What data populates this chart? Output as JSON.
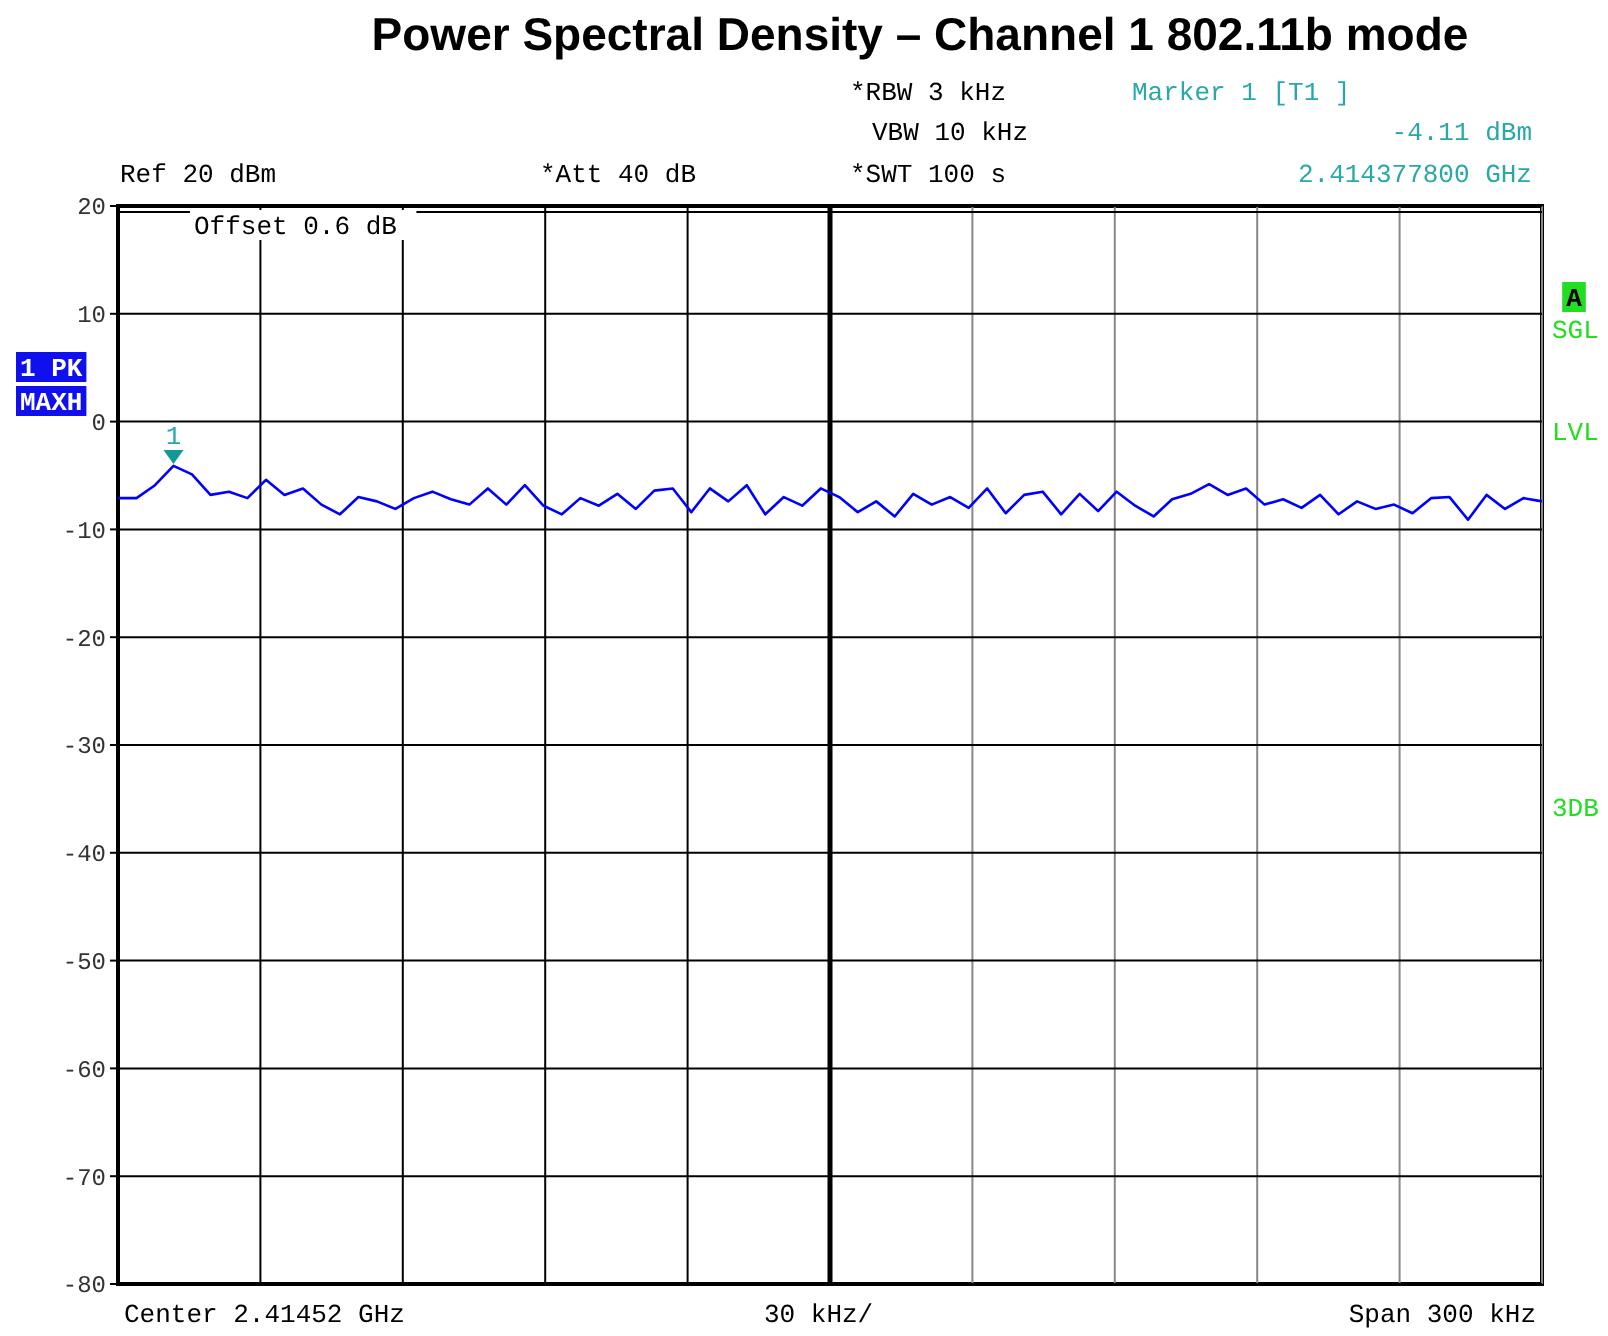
{
  "chart_data": {
    "type": "line",
    "title": "Power Spectral Density – Channel 1 802.11b mode",
    "categories": [
      null,
      null,
      null,
      null,
      null,
      null,
      null,
      null,
      null,
      null,
      null,
      null,
      null,
      null,
      null,
      null,
      null,
      null,
      null,
      null,
      null,
      null,
      null,
      null,
      null,
      null,
      null,
      null,
      null,
      null,
      null,
      null,
      null,
      null,
      null,
      null,
      null,
      null,
      null,
      null,
      null,
      null,
      null,
      null,
      null,
      null,
      null,
      null,
      null,
      null,
      null,
      null,
      null,
      null,
      null,
      null,
      null,
      null,
      null,
      null,
      null,
      null,
      null,
      null,
      null,
      null,
      null,
      null,
      null,
      null,
      null,
      null,
      null,
      null,
      null,
      null,
      null,
      null
    ],
    "series": [
      {
        "color": "#0000ff",
        "values": [
          -7.1,
          -7.1,
          -5.9,
          -4.11,
          -4.9,
          -6.8,
          -6.5,
          -7.1,
          -5.4,
          -6.8,
          -6.2,
          -7.7,
          -8.6,
          -7.0,
          -7.4,
          -8.1,
          -7.1,
          -6.5,
          -7.2,
          -7.7,
          -6.2,
          -7.7,
          -5.9,
          -7.8,
          -8.6,
          -7.1,
          -7.8,
          -6.7,
          -8.1,
          -6.4,
          -6.2,
          -8.4,
          -6.2,
          -7.4,
          -5.9,
          -8.6,
          -7.0,
          -7.8,
          -6.2,
          -7.0,
          -8.4,
          -7.4,
          -8.8,
          -6.7,
          -7.7,
          -7.0,
          -8.0,
          -6.2,
          -8.5,
          -6.8,
          -6.5,
          -8.6,
          -6.7,
          -8.3,
          -6.5,
          -7.8,
          -8.8,
          -7.2,
          -6.7,
          -5.8,
          -6.8,
          -6.2,
          -7.7,
          -7.2,
          -8.0,
          -6.8,
          -8.6,
          -7.4,
          -8.1,
          -7.7,
          -8.5,
          -7.1,
          -7.0,
          -9.1,
          -6.8,
          -8.1,
          -7.1,
          -7.4
        ]
      }
    ],
    "ylim": [
      -80,
      20
    ],
    "yticks": [
      20,
      10,
      0,
      -10,
      -20,
      -30,
      -40,
      -50,
      -60,
      -70,
      -80
    ],
    "grid": true,
    "marker": "none",
    "line_style": "solid",
    "annotations": [
      {
        "text": "1",
        "y": -4.11
      },
      "Ref  20 dBm",
      "*Att  40 dB",
      "*RBW 3 kHz",
      "VBW 10 kHz",
      "*SWT 100 s",
      "Marker 1 [T1 ]",
      "-4.11 dBm",
      "2.414377800 GHz",
      "Offset  0.6 dB",
      "1 PK",
      "MAXH",
      "A",
      "SGL",
      "LVL",
      "3DB",
      "Center 2.41452 GHz",
      "30 kHz/",
      "Span 300 kHz"
    ]
  }
}
